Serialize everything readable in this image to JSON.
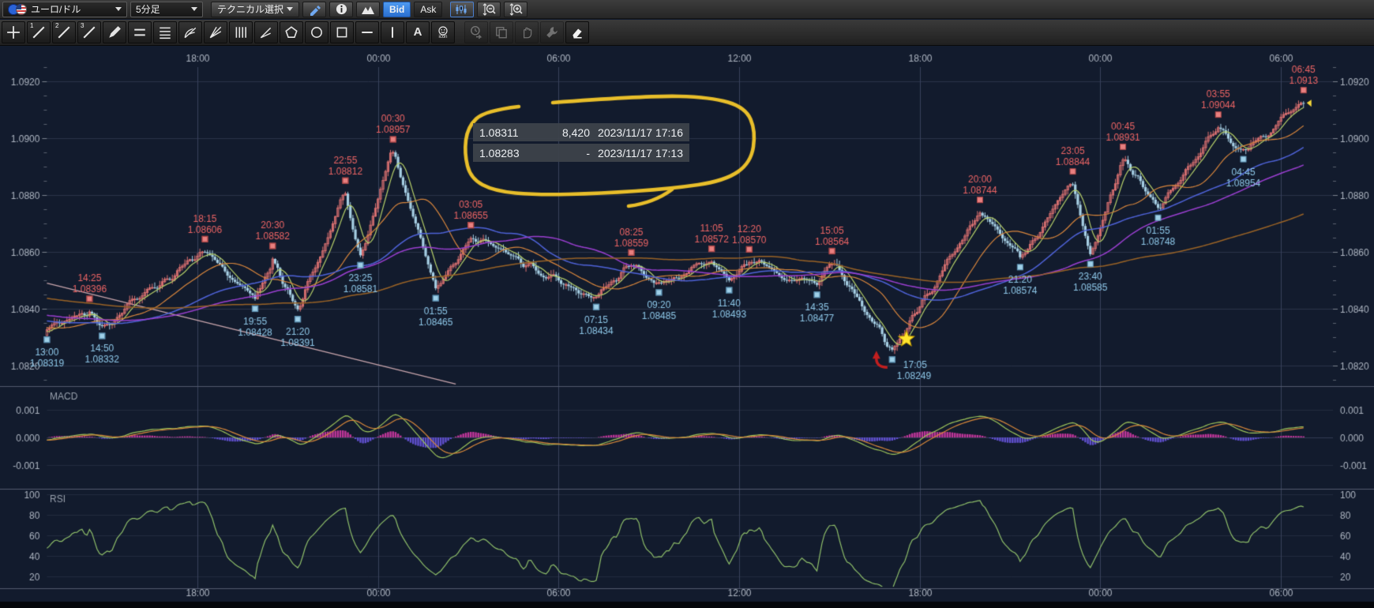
{
  "toolbar": {
    "pair_label": "ユーロ/ドル",
    "timeframe_label": "5分足",
    "technical_label": "テクニカル選択",
    "bid_label": "Bid",
    "ask_label": "Ask",
    "icons": [
      "eu-flag",
      "us-flag",
      "pencil-icon",
      "info-icon",
      "mountain-chart-icon",
      "candle-chart-icon",
      "zoom-out-icon",
      "zoom-in-icon"
    ]
  },
  "draw_toolbar": {
    "tools": [
      {
        "name": "crosshair-tool",
        "enabled": true
      },
      {
        "name": "trendline-1-tool",
        "badge": "1",
        "enabled": true
      },
      {
        "name": "trendline-2-tool",
        "badge": "2",
        "enabled": true
      },
      {
        "name": "trendline-3-tool",
        "badge": "3",
        "enabled": true
      },
      {
        "name": "freehand-pencil-tool",
        "enabled": true
      },
      {
        "name": "parallel-lines-tool",
        "enabled": true
      },
      {
        "name": "fibonacci-retracement-tool",
        "enabled": true
      },
      {
        "name": "fibonacci-arcs-tool",
        "enabled": true
      },
      {
        "name": "fibonacci-fan-tool",
        "enabled": true
      },
      {
        "name": "fibonacci-timezones-tool",
        "enabled": true
      },
      {
        "name": "angle-line-tool",
        "enabled": true
      },
      {
        "name": "pentagon-tool",
        "enabled": true
      },
      {
        "name": "ellipse-tool",
        "enabled": true
      },
      {
        "name": "rectangle-tool",
        "enabled": true
      },
      {
        "name": "horizontal-line-tool",
        "enabled": true
      },
      {
        "name": "vertical-line-tool",
        "enabled": true
      },
      {
        "name": "text-tool",
        "label": "A",
        "enabled": true
      },
      {
        "name": "icon-stamp-tool",
        "caption": "icon",
        "enabled": true
      },
      {
        "name": "history-tool",
        "enabled": false
      },
      {
        "name": "copy-objects-tool",
        "enabled": false
      },
      {
        "name": "hand-tool",
        "enabled": false
      },
      {
        "name": "settings-tool",
        "enabled": false
      },
      {
        "name": "eraser-tool",
        "enabled": true
      }
    ]
  },
  "tooltip": {
    "rows": [
      {
        "price": "1.08311",
        "volume": "8,420",
        "datetime": "2023/11/17 17:16"
      },
      {
        "price": "1.08283",
        "volume": "-",
        "datetime": "2023/11/17 17:13"
      }
    ]
  },
  "chart_data": {
    "type": "candlestick",
    "interval_label": "5分足",
    "time_axis": {
      "labels": [
        "18:00",
        "00:00",
        "06:00",
        "12:00",
        "18:00",
        "00:00",
        "06:00"
      ],
      "minutes": [
        300,
        660,
        1020,
        1380,
        1740,
        2100,
        2460
      ],
      "start_minute": 0,
      "end_minute": 2550
    },
    "price_axis": {
      "tick_labels": [
        "1.0920",
        "1.0900",
        "1.0880",
        "1.0860",
        "1.0840",
        "1.0820"
      ],
      "tick_values": [
        1.092,
        1.09,
        1.088,
        1.086,
        1.084,
        1.082
      ],
      "minor_step": 0.0005
    },
    "swings": [
      {
        "time": "13:00",
        "price_label": "1.08319",
        "price": 1.08319,
        "minute": 0,
        "side": "low"
      },
      {
        "time": "14:25",
        "price_label": "1.08396",
        "price": 1.08396,
        "minute": 85,
        "side": "high"
      },
      {
        "time": "14:50",
        "price_label": "1.08332",
        "price": 1.08332,
        "minute": 110,
        "side": "low"
      },
      {
        "time": "18:15",
        "price_label": "1.08606",
        "price": 1.08606,
        "minute": 315,
        "side": "high"
      },
      {
        "time": "19:55",
        "price_label": "1.08428",
        "price": 1.08428,
        "minute": 415,
        "side": "low"
      },
      {
        "time": "20:30",
        "price_label": "1.08582",
        "price": 1.08582,
        "minute": 450,
        "side": "high"
      },
      {
        "time": "21:20",
        "price_label": "1.08391",
        "price": 1.08391,
        "minute": 500,
        "side": "low"
      },
      {
        "time": "22:55",
        "price_label": "1.08812",
        "price": 1.08812,
        "minute": 595,
        "side": "high"
      },
      {
        "time": "23:25",
        "price_label": "1.08581",
        "price": 1.08581,
        "minute": 625,
        "side": "low"
      },
      {
        "time": "00:30",
        "price_label": "1.08957",
        "price": 1.08957,
        "minute": 690,
        "side": "high"
      },
      {
        "time": "01:55",
        "price_label": "1.08465",
        "price": 1.08465,
        "minute": 775,
        "side": "low"
      },
      {
        "time": "03:05",
        "price_label": "1.08655",
        "price": 1.08655,
        "minute": 845,
        "side": "high"
      },
      {
        "time": "07:15",
        "price_label": "1.08434",
        "price": 1.08434,
        "minute": 1095,
        "side": "low"
      },
      {
        "time": "08:25",
        "price_label": "1.08559",
        "price": 1.08559,
        "minute": 1165,
        "side": "high"
      },
      {
        "time": "09:20",
        "price_label": "1.08485",
        "price": 1.08485,
        "minute": 1220,
        "side": "low"
      },
      {
        "time": "11:05",
        "price_label": "1.08572",
        "price": 1.08572,
        "minute": 1325,
        "side": "high"
      },
      {
        "time": "11:40",
        "price_label": "1.08493",
        "price": 1.08493,
        "minute": 1360,
        "side": "low"
      },
      {
        "time": "12:20",
        "price_label": "1.08570",
        "price": 1.0857,
        "minute": 1400,
        "side": "high"
      },
      {
        "time": "14:35",
        "price_label": "1.08477",
        "price": 1.08477,
        "minute": 1535,
        "side": "low"
      },
      {
        "time": "15:05",
        "price_label": "1.08564",
        "price": 1.08564,
        "minute": 1565,
        "side": "high"
      },
      {
        "time": "17:05",
        "price_label": "1.08249",
        "price": 1.08249,
        "minute": 1685,
        "side": "low",
        "arrow": true,
        "star": true
      },
      {
        "time": "20:00",
        "price_label": "1.08744",
        "price": 1.08744,
        "minute": 1860,
        "side": "high"
      },
      {
        "time": "21:20",
        "price_label": "1.08574",
        "price": 1.08574,
        "minute": 1940,
        "side": "low"
      },
      {
        "time": "23:05",
        "price_label": "1.08844",
        "price": 1.08844,
        "minute": 2045,
        "side": "high"
      },
      {
        "time": "23:40",
        "price_label": "1.08585",
        "price": 1.08585,
        "minute": 2080,
        "side": "low"
      },
      {
        "time": "00:45",
        "price_label": "1.08931",
        "price": 1.08931,
        "minute": 2145,
        "side": "high"
      },
      {
        "time": "01:55",
        "price_label": "1.08748",
        "price": 1.08748,
        "minute": 2215,
        "side": "low"
      },
      {
        "time": "03:55",
        "price_label": "1.09044",
        "price": 1.09044,
        "minute": 2335,
        "side": "high"
      },
      {
        "time": "04:45",
        "price_label": "1.08954",
        "price": 1.08954,
        "minute": 2385,
        "side": "low"
      },
      {
        "time": "06:45",
        "price_label": "1.0913",
        "price": 1.0913,
        "minute": 2505,
        "side": "high",
        "latest": true
      }
    ],
    "trendline": {
      "from_minute": 0,
      "from_price": 1.0849,
      "to_minute": 815,
      "to_price": 1.08135
    },
    "panels": {
      "macd": {
        "label": "MACD",
        "tick_labels": [
          "0.001",
          "0.000",
          "-0.001"
        ],
        "tick_values": [
          0.001,
          0,
          -0.001
        ]
      },
      "rsi": {
        "label": "RSI",
        "tick_labels": [
          "100",
          "80",
          "60",
          "40",
          "20"
        ],
        "tick_values": [
          100,
          80,
          60,
          40,
          20
        ]
      }
    },
    "colors": {
      "background": "#121b2d",
      "grid_v": "#39425c",
      "grid_h": "#2a3349",
      "panel_grid": "#232c3f",
      "divider": "#525a6e",
      "axis_text": "#aeb6c2",
      "panel_label": "#99a1ad",
      "candle_up": "#dd7272",
      "candle_down": "#a6cfe4",
      "ma_lines": [
        "#b6cf69",
        "#d9863c",
        "#4f63d9",
        "#9b3fd1",
        "#9a6326"
      ],
      "trendline": "#c9a6ad",
      "macd_hist_pos": "#c2369b",
      "macd_hist_neg": "#6050cf",
      "macd_line": "#9ec45a",
      "macd_signal": "#d8883a",
      "rsi_line": "#8fbf6a",
      "swing_high_text": "#ee6565",
      "swing_low_text": "#8fc9ea",
      "loop": "#e8be2a",
      "star": "#ffe52e",
      "arrow": "#c21f1f",
      "latest_marker": "#f5d83a"
    }
  }
}
